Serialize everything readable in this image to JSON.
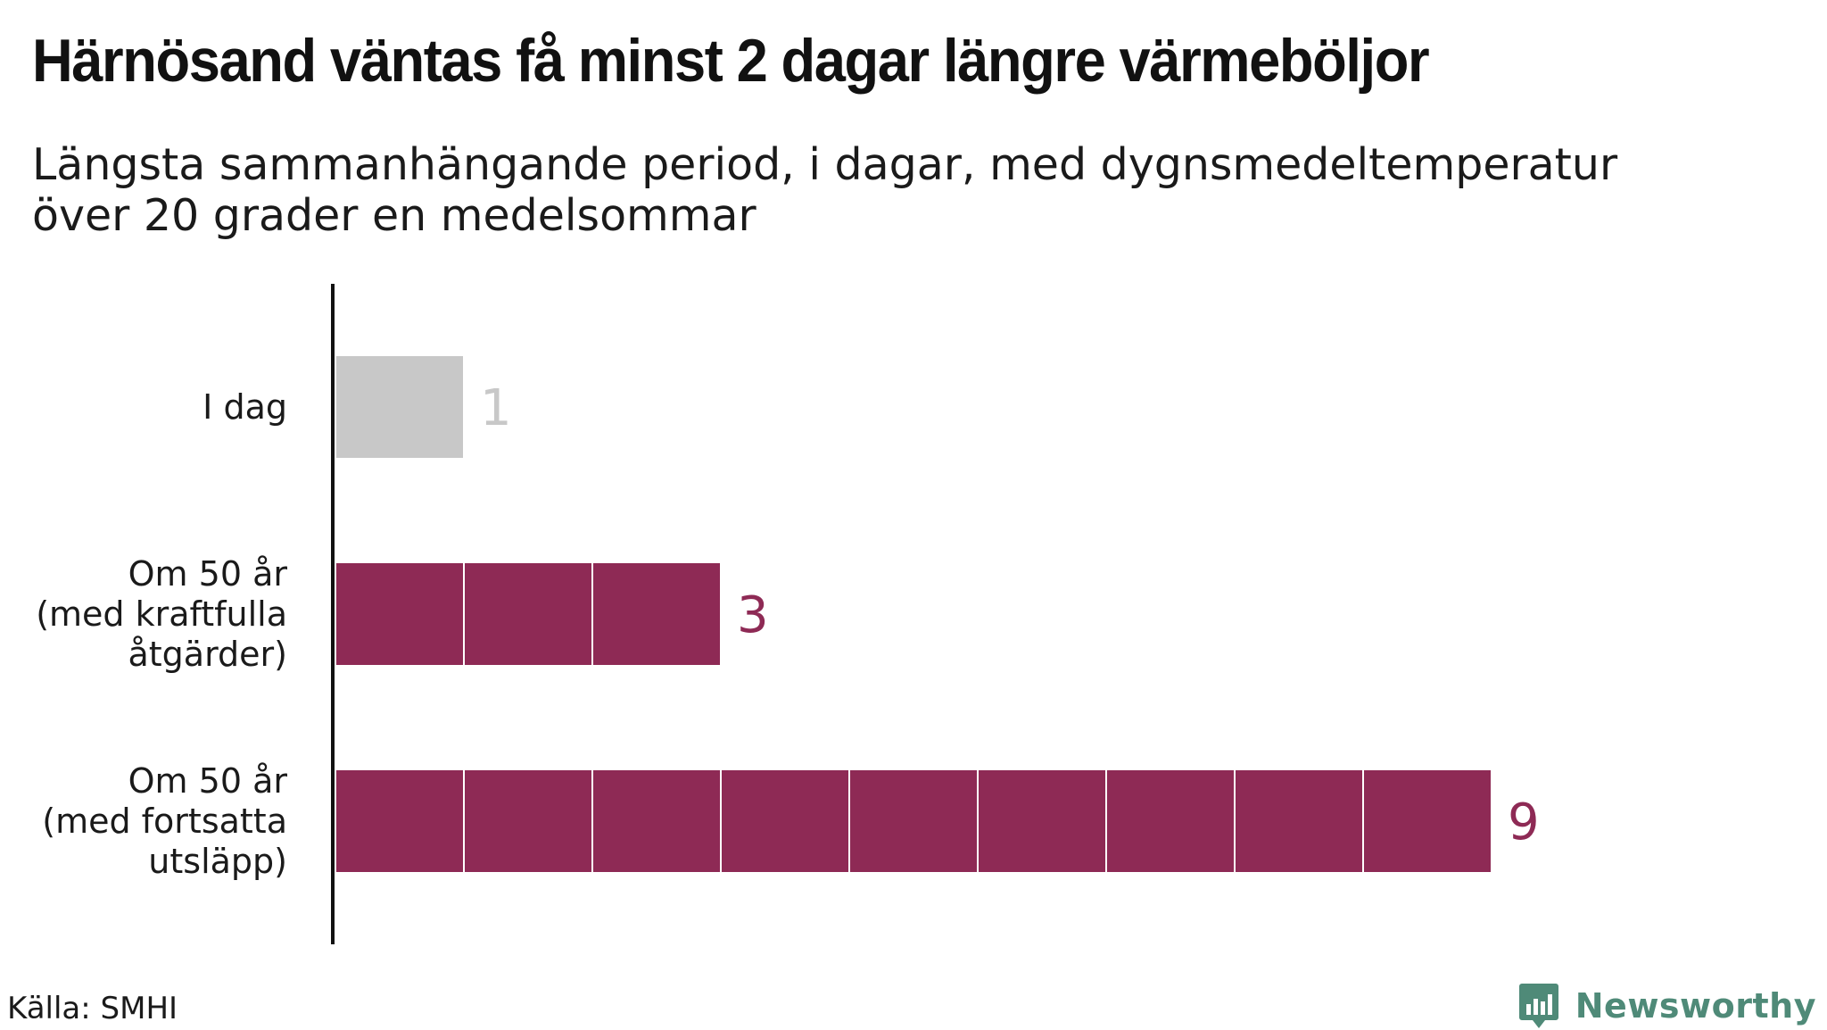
{
  "title": "Härnösand väntas få minst 2 dagar längre värmeböljor",
  "subtitle": "Längsta sammanhängande period, i dagar, med dygnsmedeltemperatur över 20 grader en medelsommar",
  "source": "Källa: SMHI",
  "brand": "Newsworthy",
  "colors": {
    "current": "#c8c8c8",
    "future": "#8e2a55",
    "axis": "#111111"
  },
  "chart_data": {
    "type": "bar",
    "orientation": "horizontal",
    "categories": [
      [
        "I dag"
      ],
      [
        "Om 50 år",
        "(med kraftfulla",
        "åtgärder)"
      ],
      [
        "Om 50 år",
        "(med fortsatta",
        "utsläpp)"
      ]
    ],
    "values": [
      1,
      3,
      9
    ],
    "xlim": [
      0,
      9
    ],
    "grid": false,
    "legend": "none",
    "bar_style": "segmented, one segment per day"
  }
}
